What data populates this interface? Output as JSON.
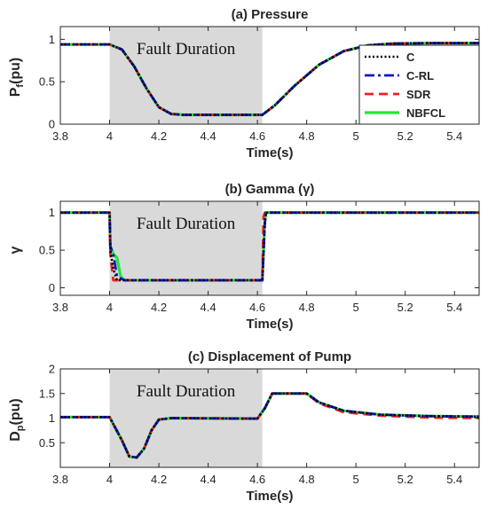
{
  "chart_data": [
    {
      "type": "line",
      "title": "(a) Pressure",
      "xlabel": "Time(s)",
      "ylabel_main": "P",
      "ylabel_sub": "f",
      "ylabel_unit": "(pu)",
      "xlim": [
        3.8,
        5.5
      ],
      "ylim": [
        0,
        1.15
      ],
      "xticks": [
        3.8,
        4,
        4.2,
        4.4,
        4.6,
        4.8,
        5,
        5.2,
        5.4
      ],
      "xtick_labels": [
        "3.8",
        "4",
        "4.2",
        "4.4",
        "4.6",
        "4.8",
        "5",
        "5.2",
        "5.4"
      ],
      "yticks": [
        0,
        0.5,
        1
      ],
      "ytick_labels": [
        "0",
        "0.5",
        "1"
      ],
      "shaded_region": {
        "x": [
          4.0,
          4.62
        ],
        "label": "Fault Duration",
        "color": "#d9d9d9"
      },
      "legend": {
        "placement": "right",
        "entries": [
          {
            "name": "C",
            "color": "#000000",
            "style": "dotted"
          },
          {
            "name": "C-RL",
            "color": "#1414c8",
            "style": "dashdot"
          },
          {
            "name": "SDR",
            "color": "#e8231f",
            "style": "dashed"
          },
          {
            "name": "NBFCL",
            "color": "#22e63a",
            "style": "solid"
          }
        ]
      },
      "series": [
        {
          "name": "C",
          "x": [
            3.8,
            4.0,
            4.05,
            4.1,
            4.15,
            4.2,
            4.25,
            4.3,
            4.62,
            4.67,
            4.75,
            4.85,
            4.95,
            5.05,
            5.15,
            5.3,
            5.5
          ],
          "y": [
            0.94,
            0.94,
            0.88,
            0.68,
            0.42,
            0.2,
            0.12,
            0.11,
            0.11,
            0.22,
            0.45,
            0.7,
            0.86,
            0.93,
            0.95,
            0.955,
            0.955
          ]
        },
        {
          "name": "C-RL",
          "x": [
            3.8,
            4.0,
            4.05,
            4.1,
            4.15,
            4.2,
            4.25,
            4.3,
            4.62,
            4.67,
            4.75,
            4.85,
            4.95,
            5.05,
            5.15,
            5.3,
            5.5
          ],
          "y": [
            0.94,
            0.94,
            0.88,
            0.68,
            0.42,
            0.2,
            0.12,
            0.11,
            0.11,
            0.22,
            0.45,
            0.7,
            0.86,
            0.93,
            0.95,
            0.955,
            0.955
          ]
        },
        {
          "name": "SDR",
          "x": [
            3.8,
            4.0,
            4.05,
            4.1,
            4.15,
            4.2,
            4.25,
            4.3,
            4.62,
            4.67,
            4.75,
            4.85,
            4.95,
            5.05,
            5.15,
            5.3,
            5.5
          ],
          "y": [
            0.94,
            0.94,
            0.88,
            0.68,
            0.42,
            0.2,
            0.12,
            0.11,
            0.11,
            0.22,
            0.45,
            0.7,
            0.86,
            0.93,
            0.95,
            0.955,
            0.955
          ]
        },
        {
          "name": "NBFCL",
          "x": [
            3.8,
            4.0,
            4.05,
            4.1,
            4.15,
            4.2,
            4.25,
            4.3,
            4.62,
            4.67,
            4.75,
            4.85,
            4.95,
            5.05,
            5.15,
            5.3,
            5.5
          ],
          "y": [
            0.94,
            0.94,
            0.88,
            0.68,
            0.42,
            0.2,
            0.12,
            0.11,
            0.11,
            0.22,
            0.45,
            0.7,
            0.86,
            0.93,
            0.95,
            0.955,
            0.955
          ]
        }
      ]
    },
    {
      "type": "line",
      "title": "(b) Gamma (γ)",
      "xlabel": "Time(s)",
      "ylabel_main": "γ",
      "xlim": [
        3.8,
        5.5
      ],
      "ylim": [
        -0.1,
        1.15
      ],
      "xticks": [
        3.8,
        4,
        4.2,
        4.4,
        4.6,
        4.8,
        5,
        5.2,
        5.4
      ],
      "xtick_labels": [
        "3.8",
        "4",
        "4.2",
        "4.4",
        "4.6",
        "4.8",
        "5",
        "5.2",
        "5.4"
      ],
      "yticks": [
        0,
        0.5,
        1
      ],
      "ytick_labels": [
        "0",
        "0.5",
        "1"
      ],
      "shaded_region": {
        "x": [
          4.0,
          4.62
        ],
        "label": "Fault Duration",
        "color": "#d9d9d9"
      },
      "series": [
        {
          "name": "C",
          "x": [
            3.8,
            4.0,
            4.003,
            4.015,
            4.03,
            4.06,
            4.62,
            4.63,
            4.635,
            5.5
          ],
          "y": [
            1.0,
            1.0,
            0.5,
            0.25,
            0.1,
            0.1,
            0.1,
            0.85,
            1.0,
            1.0
          ]
        },
        {
          "name": "C-RL",
          "x": [
            3.8,
            4.0,
            4.003,
            4.015,
            4.03,
            4.06,
            4.62,
            4.63,
            4.635,
            5.5
          ],
          "y": [
            1.0,
            1.0,
            0.55,
            0.45,
            0.15,
            0.1,
            0.1,
            0.85,
            1.0,
            1.0
          ]
        },
        {
          "name": "SDR",
          "x": [
            3.8,
            4.0,
            4.003,
            4.015,
            4.03,
            4.06,
            4.62,
            4.625,
            4.63,
            5.5
          ],
          "y": [
            1.0,
            1.0,
            0.45,
            0.1,
            0.1,
            0.1,
            0.1,
            0.95,
            1.0,
            1.0
          ]
        },
        {
          "name": "NBFCL",
          "x": [
            3.8,
            4.0,
            4.003,
            4.015,
            4.03,
            4.045,
            4.06,
            4.62,
            4.63,
            4.635,
            5.5
          ],
          "y": [
            1.0,
            1.0,
            0.55,
            0.45,
            0.4,
            0.15,
            0.1,
            0.1,
            0.9,
            1.0,
            1.0
          ]
        }
      ]
    },
    {
      "type": "line",
      "title": "(c) Displacement of Pump",
      "xlabel": "Time(s)",
      "ylabel_main": "D",
      "ylabel_sub": "p",
      "ylabel_unit": "(pu)",
      "xlim": [
        3.8,
        5.5
      ],
      "ylim": [
        0,
        2
      ],
      "xticks": [
        3.8,
        4,
        4.2,
        4.4,
        4.6,
        4.8,
        5,
        5.2,
        5.4
      ],
      "xtick_labels": [
        "3.8",
        "4",
        "4.2",
        "4.4",
        "4.6",
        "4.8",
        "5",
        "5.2",
        "5.4"
      ],
      "yticks": [
        0.5,
        1,
        1.5,
        2
      ],
      "ytick_labels": [
        "0.5",
        "1",
        "1.5",
        "2"
      ],
      "shaded_region": {
        "x": [
          4.0,
          4.62
        ],
        "label": "Fault Duration",
        "color": "#d9d9d9"
      },
      "series": [
        {
          "name": "C",
          "x": [
            3.8,
            4.0,
            4.05,
            4.08,
            4.11,
            4.14,
            4.17,
            4.2,
            4.25,
            4.6,
            4.63,
            4.66,
            4.8,
            4.85,
            4.95,
            5.1,
            5.3,
            5.5
          ],
          "y": [
            1.02,
            1.02,
            0.55,
            0.22,
            0.2,
            0.38,
            0.75,
            0.97,
            1.0,
            0.99,
            1.2,
            1.5,
            1.5,
            1.32,
            1.15,
            1.07,
            1.04,
            1.03
          ]
        },
        {
          "name": "C-RL",
          "x": [
            3.8,
            4.0,
            4.05,
            4.08,
            4.11,
            4.14,
            4.17,
            4.2,
            4.25,
            4.6,
            4.63,
            4.66,
            4.8,
            4.85,
            4.95,
            5.1,
            5.3,
            5.5
          ],
          "y": [
            1.02,
            1.02,
            0.55,
            0.22,
            0.2,
            0.38,
            0.75,
            0.97,
            1.0,
            0.99,
            1.2,
            1.5,
            1.5,
            1.32,
            1.15,
            1.07,
            1.04,
            1.03
          ]
        },
        {
          "name": "SDR",
          "x": [
            3.8,
            4.0,
            4.05,
            4.08,
            4.11,
            4.14,
            4.17,
            4.2,
            4.25,
            4.6,
            4.63,
            4.66,
            4.8,
            4.85,
            4.95,
            5.1,
            5.3,
            5.5
          ],
          "y": [
            1.02,
            1.02,
            0.55,
            0.22,
            0.2,
            0.38,
            0.75,
            0.97,
            1.0,
            0.99,
            1.2,
            1.5,
            1.5,
            1.3,
            1.12,
            1.05,
            1.01,
            1.0
          ]
        },
        {
          "name": "NBFCL",
          "x": [
            3.8,
            4.0,
            4.05,
            4.08,
            4.11,
            4.14,
            4.17,
            4.2,
            4.25,
            4.6,
            4.63,
            4.66,
            4.8,
            4.85,
            4.95,
            5.1,
            5.3,
            5.5
          ],
          "y": [
            1.02,
            1.02,
            0.55,
            0.22,
            0.2,
            0.38,
            0.75,
            0.97,
            1.0,
            0.99,
            1.2,
            1.5,
            1.5,
            1.32,
            1.15,
            1.07,
            1.04,
            1.03
          ]
        }
      ]
    }
  ]
}
